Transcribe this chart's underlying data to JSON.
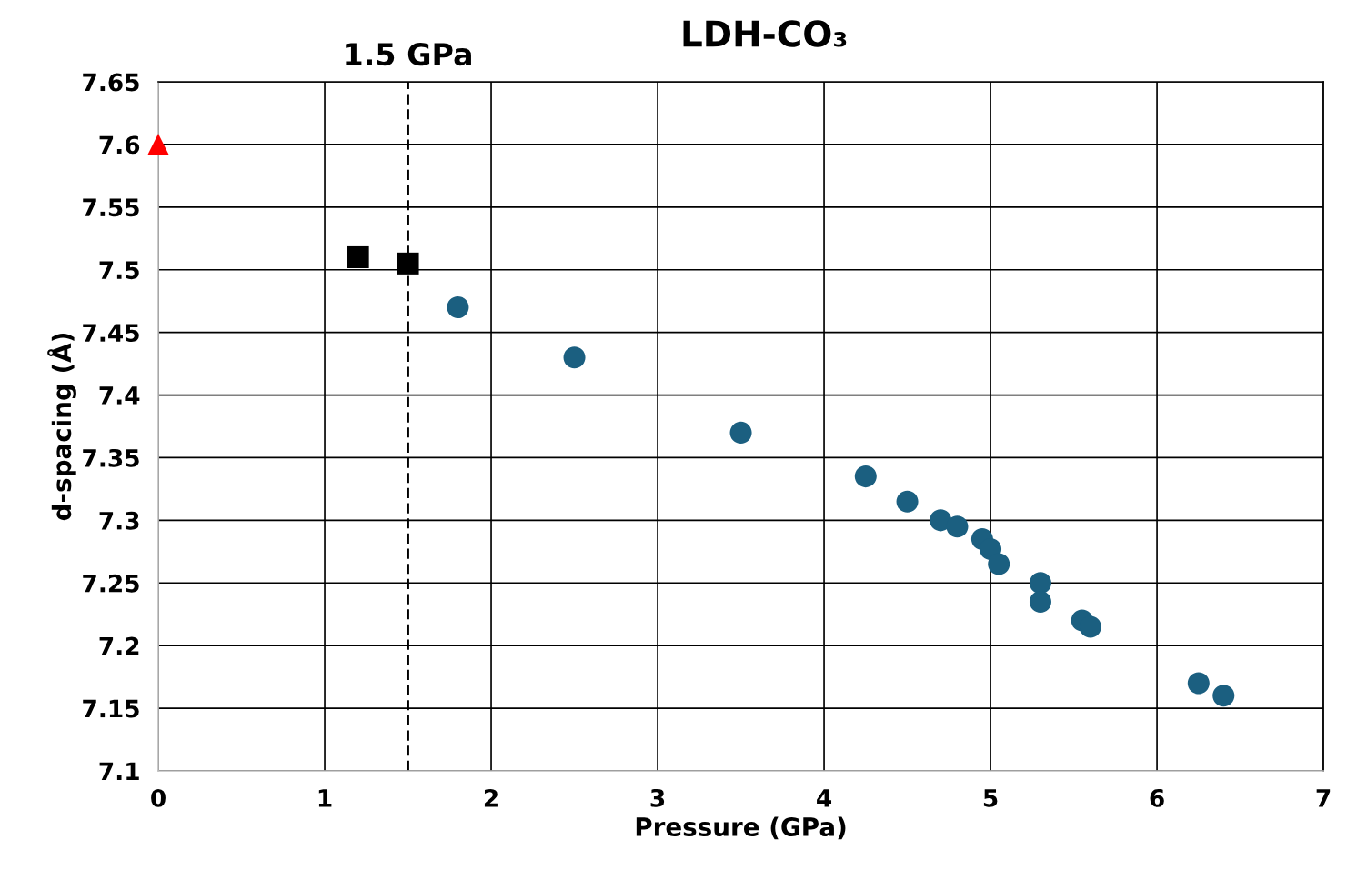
{
  "chart_data": {
    "type": "scatter",
    "title": "LDH-CO₃",
    "xlabel": "Pressure (GPa)",
    "ylabel": "d-spacing (Å)",
    "xlim": [
      0,
      7
    ],
    "xticks": [
      0,
      1,
      2,
      3,
      4,
      5,
      6,
      7
    ],
    "ylim": [
      7.1,
      7.65
    ],
    "yticks": [
      {
        "value": 7.1,
        "label": "7.1"
      },
      {
        "value": 7.15,
        "label": "7.15"
      },
      {
        "value": 7.2,
        "label": "7.2"
      },
      {
        "value": 7.25,
        "label": "7.25"
      },
      {
        "value": 7.3,
        "label": "7.3"
      },
      {
        "value": 7.35,
        "label": "7.35"
      },
      {
        "value": 7.4,
        "label": "7.4"
      },
      {
        "value": 7.45,
        "label": "7.45"
      },
      {
        "value": 7.5,
        "label": "7.5"
      },
      {
        "value": 7.55,
        "label": "7.55"
      },
      {
        "value": 7.6,
        "label": "7.6"
      },
      {
        "value": 7.65,
        "label": "7.65"
      }
    ],
    "grid": true,
    "ref_lines": [
      {
        "axis": "x",
        "value": 1.5,
        "label": "1.5 GPa",
        "color": "#000000",
        "line_style": "dashed"
      }
    ],
    "series": [
      {
        "color": "#ff0000",
        "marker": "triangle",
        "x": [
          0
        ],
        "values": [
          7.6
        ]
      },
      {
        "color": "#000000",
        "marker": "square",
        "x": [
          1.2,
          1.5
        ],
        "values": [
          7.51,
          7.505
        ]
      },
      {
        "color": "#1b5f80",
        "marker": "circle",
        "x": [
          1.8,
          2.5,
          3.5,
          4.25,
          4.5,
          4.7,
          4.8,
          4.95,
          5.0,
          5.05,
          5.3,
          5.3,
          5.55,
          5.6,
          6.25,
          6.4
        ],
        "values": [
          7.47,
          7.43,
          7.37,
          7.335,
          7.315,
          7.3,
          7.295,
          7.285,
          7.277,
          7.265,
          7.25,
          7.235,
          7.22,
          7.215,
          7.17,
          7.16
        ]
      }
    ]
  }
}
